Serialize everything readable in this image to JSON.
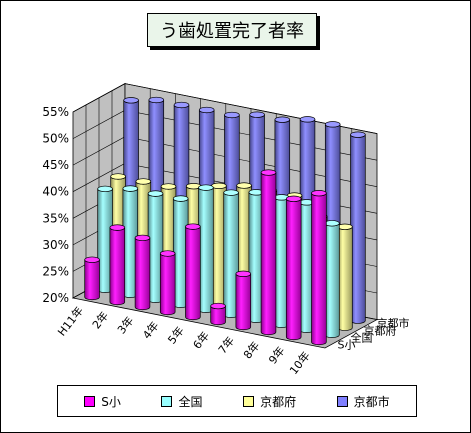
{
  "chart_data": {
    "type": "bar",
    "style": "3d-cylinder",
    "title": "う歯処置完了者率",
    "categories": [
      "H11年",
      "2年",
      "3年",
      "4年",
      "5年",
      "6年",
      "7年",
      "8年",
      "9年",
      "10年"
    ],
    "y_ticks": [
      "20%",
      "25%",
      "30%",
      "35%",
      "40%",
      "45%",
      "50%",
      "55%"
    ],
    "ylim": [
      20,
      55
    ],
    "grid": true,
    "legend_position": "bottom",
    "series": [
      {
        "name": "S小",
        "color": "#ff00ff",
        "values": [
          27,
          34,
          33,
          31,
          37,
          23,
          30,
          50,
          46,
          48
        ]
      },
      {
        "name": "全国",
        "color": "#99ffff",
        "values": [
          39,
          40,
          40,
          40,
          43,
          43,
          44,
          44,
          44,
          41
        ]
      },
      {
        "name": "京都府",
        "color": "#ffff99",
        "values": [
          40,
          40,
          40,
          41,
          42,
          43,
          43,
          43,
          40,
          39
        ]
      },
      {
        "name": "京都市",
        "color": "#8080ff",
        "values": [
          53,
          54,
          54,
          54,
          54,
          55,
          55,
          56,
          56,
          55
        ]
      }
    ]
  }
}
